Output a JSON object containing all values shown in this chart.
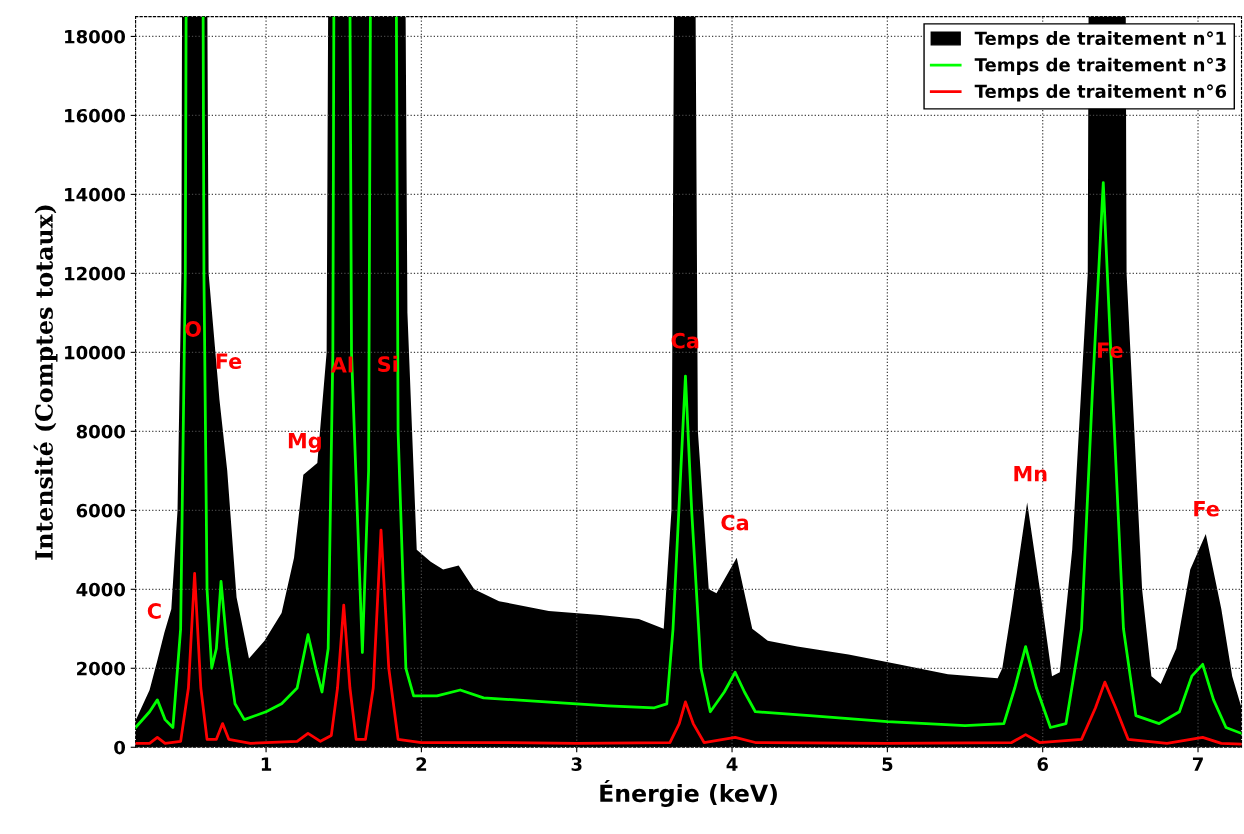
{
  "chart_data": {
    "type": "area",
    "xlabel": "Énergie (keV)",
    "ylabel": "Intensité (Comptes totaux)",
    "xlim": [
      0.16,
      7.28
    ],
    "ylim": [
      0,
      18500
    ],
    "xticks": [
      1,
      2,
      3,
      4,
      5,
      6,
      7
    ],
    "yticks": [
      0,
      2000,
      4000,
      6000,
      8000,
      10000,
      12000,
      14000,
      16000,
      18000
    ],
    "grid": true,
    "legend": "top right",
    "line_style": "solid",
    "marker": "none",
    "series": [
      {
        "name": "Temps de traitement n°1",
        "color": "#000000",
        "x": [
          0.16,
          0.25,
          0.3,
          0.345,
          0.39,
          0.43,
          0.455,
          0.47,
          0.6,
          0.63,
          0.7,
          0.75,
          0.81,
          0.89,
          0.99,
          1.1,
          1.18,
          1.24,
          1.33,
          1.39,
          1.42,
          1.87,
          1.91,
          1.97,
          2.06,
          2.14,
          2.24,
          2.34,
          2.5,
          2.82,
          3.15,
          3.4,
          3.56,
          3.61,
          3.65,
          3.74,
          3.78,
          3.85,
          3.9,
          4.03,
          4.13,
          4.23,
          4.42,
          4.75,
          5.07,
          5.39,
          5.71,
          5.74,
          5.8,
          5.9,
          6.0,
          6.06,
          6.11,
          6.19,
          6.29,
          6.31,
          6.52,
          6.54,
          6.64,
          6.7,
          6.76,
          6.86,
          6.95,
          7.05,
          7.15,
          7.22,
          7.28
        ],
        "values": [
          680,
          1450,
          2200,
          2900,
          3500,
          6000,
          12000,
          null,
          null,
          12000,
          8800,
          7000,
          3800,
          2250,
          2700,
          3400,
          4800,
          6900,
          7200,
          10000,
          null,
          null,
          11000,
          5000,
          4700,
          4500,
          4600,
          4000,
          3700,
          3450,
          3350,
          3250,
          3000,
          6000,
          null,
          null,
          8000,
          4000,
          3900,
          4800,
          3000,
          2700,
          2550,
          2350,
          2100,
          1850,
          1750,
          2000,
          3500,
          6200,
          3500,
          1800,
          1900,
          5000,
          12000,
          null,
          null,
          12000,
          4000,
          1800,
          1600,
          2500,
          4500,
          5400,
          3500,
          1800,
          1000
        ]
      },
      {
        "name": "Temps de traitement n°3",
        "type": "line",
        "color": "#00ff00",
        "x": [
          0.16,
          0.25,
          0.3,
          0.35,
          0.4,
          0.45,
          0.48,
          0.5,
          0.58,
          0.6,
          0.62,
          0.65,
          0.68,
          0.71,
          0.75,
          0.8,
          0.86,
          1.0,
          1.1,
          1.2,
          1.27,
          1.32,
          1.36,
          1.4,
          1.43,
          1.45,
          1.52,
          1.55,
          1.62,
          1.66,
          1.69,
          1.82,
          1.85,
          1.9,
          1.95,
          2.1,
          2.25,
          2.4,
          2.8,
          3.2,
          3.5,
          3.58,
          3.62,
          3.67,
          3.7,
          3.74,
          3.8,
          3.86,
          3.95,
          4.02,
          4.08,
          4.15,
          4.5,
          5.0,
          5.5,
          5.75,
          5.82,
          5.89,
          5.96,
          6.05,
          6.15,
          6.25,
          6.32,
          6.39,
          6.45,
          6.52,
          6.6,
          6.75,
          6.88,
          6.96,
          7.03,
          7.1,
          7.18,
          7.28
        ],
        "values": [
          500,
          900,
          1200,
          700,
          500,
          3000,
          12000,
          null,
          null,
          12000,
          4000,
          2000,
          2500,
          4200,
          2500,
          1100,
          700,
          900,
          1100,
          1500,
          2850,
          2000,
          1400,
          2500,
          10000,
          null,
          null,
          10000,
          2400,
          7000,
          null,
          null,
          8000,
          2000,
          1300,
          1300,
          1450,
          1250,
          1150,
          1050,
          1000,
          1100,
          3000,
          7000,
          9400,
          6000,
          2000,
          900,
          1400,
          1900,
          1400,
          900,
          800,
          650,
          550,
          600,
          1500,
          2550,
          1500,
          500,
          600,
          3000,
          9000,
          14300,
          9000,
          3000,
          800,
          600,
          900,
          1800,
          2100,
          1200,
          500,
          350
        ]
      },
      {
        "name": "Temps de traitement n°6",
        "type": "line",
        "color": "#ff0000",
        "x": [
          0.16,
          0.25,
          0.3,
          0.35,
          0.45,
          0.5,
          0.54,
          0.58,
          0.62,
          0.68,
          0.72,
          0.76,
          0.9,
          1.2,
          1.27,
          1.35,
          1.42,
          1.46,
          1.5,
          1.54,
          1.58,
          1.64,
          1.69,
          1.74,
          1.79,
          1.85,
          2.0,
          2.5,
          3.0,
          3.6,
          3.66,
          3.7,
          3.75,
          3.82,
          4.02,
          4.15,
          5.0,
          5.8,
          5.89,
          5.98,
          6.25,
          6.34,
          6.4,
          6.47,
          6.55,
          6.8,
          7.03,
          7.15,
          7.28
        ],
        "values": [
          100,
          100,
          250,
          100,
          150,
          1500,
          4400,
          1500,
          200,
          200,
          600,
          200,
          100,
          150,
          350,
          150,
          300,
          1500,
          3600,
          1500,
          200,
          200,
          1500,
          5500,
          2000,
          200,
          120,
          120,
          100,
          120,
          600,
          1150,
          600,
          120,
          250,
          120,
          100,
          120,
          320,
          120,
          200,
          1000,
          1650,
          1000,
          200,
          100,
          250,
          100,
          80
        ]
      }
    ],
    "annotations": [
      "C",
      "O",
      "Fe",
      "Mg",
      "Al",
      "Si",
      "Ca",
      "Ca",
      "Mn",
      "Fe",
      "Fe"
    ]
  }
}
